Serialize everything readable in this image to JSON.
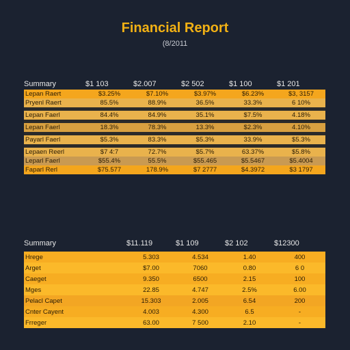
{
  "report": {
    "title": "Financial Report",
    "subtitle": "(8/2011"
  },
  "table1": {
    "headers": [
      "Summary",
      "$1 103",
      "$2.007",
      "$2 502",
      "$1 100",
      "$1 201"
    ],
    "rows": [
      [
        "Lepan Raert",
        "$3.25%",
        "$7.10%",
        "$3.97%",
        "$6.23%",
        "$3, 3157"
      ],
      [
        "Pryenl Raert",
        "85.5%",
        "88.9%",
        "36.5%",
        "33.3%",
        "6 10%"
      ],
      [
        "Lepan Faerl",
        "84.4%",
        "84.9%",
        "35.1%",
        "$7.5%",
        "4.18%"
      ],
      [
        "Lepan Faerl",
        "18.3%",
        "78.3%",
        "13.3%",
        "$2.3%",
        "4.10%"
      ],
      [
        "Payarl Faerl",
        "$5.3%",
        "83.3%",
        "$5.3%",
        "33.9%",
        "$5.3%"
      ],
      [
        "Lepaen Reerl",
        "$7 4:7",
        "72.7%",
        "$5.7%",
        "63.37%",
        "$5.8%"
      ],
      [
        "Leparl Faerl",
        "$55.4%",
        "55.5%",
        "$55.465",
        "$5.5467",
        "$5.4004"
      ],
      [
        "Faparl Rerl",
        "$75.577",
        "178.9%",
        "$7 2777",
        "$4.3972",
        "$3 1797"
      ]
    ]
  },
  "table2": {
    "headers": [
      "Summary",
      "$11.119",
      "$1 109",
      "$2 102",
      "$12300"
    ],
    "rows": [
      [
        "Hrege",
        "5.303",
        "4.534",
        "1.40",
        "400"
      ],
      [
        "Arget",
        "$7.00",
        "7060",
        "0.80",
        "6 0"
      ],
      [
        "Caeget",
        "9.350",
        "6500",
        "2.15",
        "100"
      ],
      [
        "Mges",
        "22.85",
        "4.747",
        "2.5%",
        "6.00"
      ],
      [
        "Pelacl Capet",
        "15.303",
        "2.005",
        "6.54",
        "200"
      ],
      [
        "Cnter Cayent",
        "4.003",
        "4.300",
        "6.5",
        "-"
      ],
      [
        "Frreger",
        "63.00",
        "7 500",
        "2.10",
        "-"
      ]
    ]
  },
  "colors": {
    "background": "#1b2230",
    "accent": "#f2b114",
    "row_orange": "#f4a61d",
    "row_tan": "#d8a040",
    "row_gap": "#2a2a2a"
  }
}
